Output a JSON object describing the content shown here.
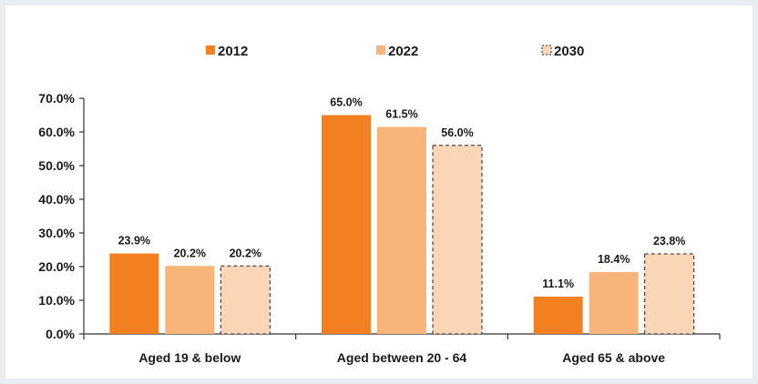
{
  "chart_data": {
    "type": "bar",
    "categories": [
      "Aged 19 & below",
      "Aged between 20 - 64",
      "Aged 65 & above"
    ],
    "series": [
      {
        "name": "2012",
        "values": [
          23.9,
          65.0,
          11.1
        ],
        "labels": [
          "23.9%",
          "65.0%",
          "11.1%"
        ],
        "color": "#f28020",
        "dashed": false
      },
      {
        "name": "2022",
        "values": [
          20.2,
          61.5,
          18.4
        ],
        "labels": [
          "20.2%",
          "61.5%",
          "18.4%"
        ],
        "color": "#f9b479",
        "dashed": false
      },
      {
        "name": "2030",
        "values": [
          20.2,
          56.0,
          23.8
        ],
        "labels": [
          "20.2%",
          "56.0%",
          "23.8%"
        ],
        "color": "#fbd6b6",
        "dashed": true
      }
    ],
    "ylim": [
      0,
      70
    ],
    "yticks": [
      0,
      10,
      20,
      30,
      40,
      50,
      60,
      70
    ],
    "ytick_labels": [
      "0.0%",
      "10.0%",
      "20.0%",
      "30.0%",
      "40.0%",
      "50.0%",
      "60.0%",
      "70.0%"
    ],
    "legend": "top",
    "grid": false
  }
}
